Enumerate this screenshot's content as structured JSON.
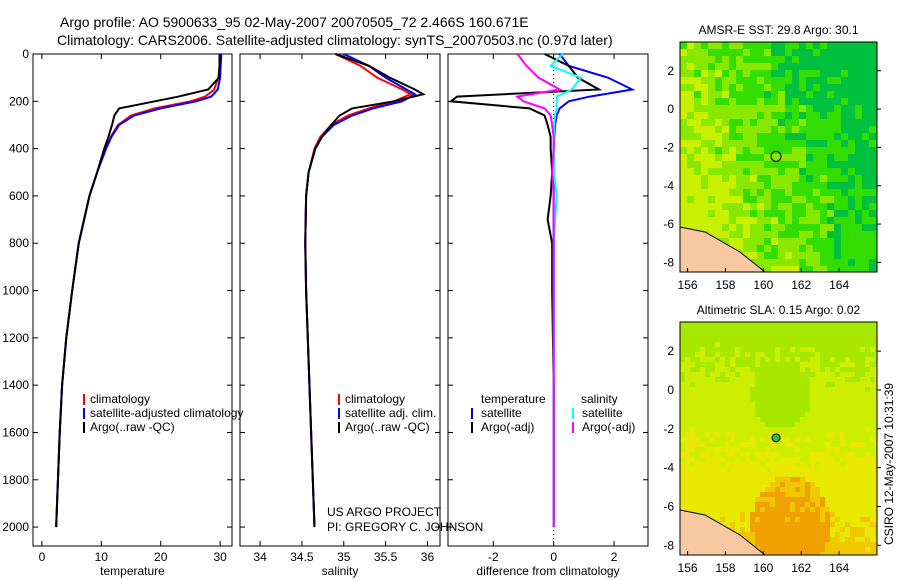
{
  "title_line1": "Argo profile: AO 5900633_95 02-May-2007 20070505_72 2.466S 160.671E",
  "title_line2": "Climatology: CARS2006. Satellite-adjusted climatology: synTS_20070503.nc (0.97d later)",
  "credit": "CSIRO 12-May-2007 10:31:39",
  "project_line1": "US ARGO PROJECT",
  "project_line2": "PI: GREGORY C. JOHNSON",
  "colors": {
    "climatology": "#ff0000",
    "satellite": "#0000ff",
    "argo": "#000000",
    "sat_sal": "#00ffff",
    "argo_sal": "#ff00ff"
  },
  "chart_data": [
    {
      "type": "line",
      "name": "temperature-profile",
      "xlabel": "temperature",
      "ylabel": "",
      "xlim": [
        -1.5,
        32
      ],
      "ylim": [
        2080,
        0
      ],
      "xticks": [
        0,
        10,
        20,
        30
      ],
      "yticks": [
        0,
        200,
        400,
        600,
        800,
        1000,
        1200,
        1400,
        1600,
        1800,
        2000
      ],
      "legend": [
        "climatology",
        "satellite-adjusted climatology",
        "Argo(..raw -QC)"
      ],
      "depth": [
        0,
        50,
        100,
        150,
        180,
        200,
        230,
        260,
        300,
        350,
        400,
        500,
        600,
        800,
        1000,
        1200,
        1400,
        1600,
        1800,
        2000
      ],
      "series": [
        {
          "name": "climatology",
          "color": "#ff0000",
          "values": [
            30,
            29.9,
            29.7,
            29,
            27.5,
            25,
            19,
            15,
            12.8,
            11.6,
            10.7,
            9.3,
            8,
            6.2,
            5.1,
            4.1,
            3.4,
            3,
            2.7,
            2.4
          ]
        },
        {
          "name": "satellite-adjusted climatology",
          "color": "#0000ff",
          "values": [
            30.2,
            30.1,
            30,
            29.6,
            28.5,
            26,
            20,
            15.5,
            13,
            11.7,
            10.8,
            9.3,
            8,
            6.2,
            5.1,
            4.1,
            3.4,
            3,
            2.7,
            2.4
          ]
        },
        {
          "name": "Argo(..raw -QC)",
          "color": "#000000",
          "values": [
            29.9,
            29.9,
            29.8,
            28,
            23,
            19,
            13,
            12.2,
            11.8,
            11.2,
            10.5,
            9.3,
            8,
            6.2,
            5.1,
            4.1,
            3.4,
            3,
            2.7,
            2.4
          ]
        }
      ]
    },
    {
      "type": "line",
      "name": "salinity-profile",
      "xlabel": "salinity",
      "xlim": [
        33.76,
        36.15
      ],
      "ylim": [
        2080,
        0
      ],
      "xticks": [
        34,
        34.5,
        35,
        35.5,
        36
      ],
      "legend": [
        "climatology",
        "satellite adj. clim.",
        "Argo(..raw -QC)"
      ],
      "depth": [
        0,
        50,
        100,
        150,
        170,
        200,
        230,
        260,
        300,
        350,
        400,
        500,
        600,
        800,
        1000,
        1200,
        1400,
        1600,
        1800,
        2000
      ],
      "series": [
        {
          "name": "climatology",
          "color": "#ff0000",
          "values": [
            34.9,
            35.2,
            35.4,
            35.7,
            35.8,
            35.6,
            35.3,
            35.05,
            34.85,
            34.72,
            34.65,
            34.58,
            34.55,
            34.54,
            34.55,
            34.57,
            34.59,
            34.61,
            34.63,
            34.65
          ]
        },
        {
          "name": "satellite adj. clim.",
          "color": "#0000ff",
          "values": [
            35.0,
            35.3,
            35.5,
            35.75,
            35.85,
            35.7,
            35.35,
            35.1,
            34.88,
            34.74,
            34.66,
            34.58,
            34.55,
            34.54,
            34.55,
            34.57,
            34.59,
            34.61,
            34.63,
            34.65
          ]
        },
        {
          "name": "Argo(..raw -QC)",
          "color": "#000000",
          "values": [
            34.9,
            35.3,
            35.55,
            35.85,
            35.95,
            35.6,
            35.1,
            34.95,
            34.85,
            34.74,
            34.66,
            34.58,
            34.55,
            34.54,
            34.55,
            34.57,
            34.59,
            34.61,
            34.63,
            34.65
          ]
        }
      ]
    },
    {
      "type": "line",
      "name": "difference-profile",
      "xlabel": "difference from climatology",
      "xlim": [
        -3.5,
        3.125
      ],
      "ylim": [
        2080,
        0
      ],
      "xticks": [
        -2,
        0,
        2
      ],
      "legend_titles": [
        "temperature",
        "salinity"
      ],
      "legend": [
        "satellite",
        "Argo(-adj)",
        "satellite",
        "Argo(-adj)"
      ],
      "depth": [
        0,
        50,
        100,
        150,
        180,
        200,
        230,
        260,
        300,
        350,
        400,
        500,
        600,
        700,
        800,
        1000,
        1400,
        2000
      ],
      "series": [
        {
          "name": "temperature satellite",
          "color": "#0000ff",
          "values": [
            0.2,
            0.5,
            1.8,
            2.6,
            1.2,
            0.5,
            0.2,
            0.1,
            0.05,
            0.02,
            0,
            0,
            0,
            0,
            0,
            0,
            0,
            0
          ]
        },
        {
          "name": "temperature Argo(-adj)",
          "color": "#000000",
          "values": [
            -0.3,
            0.5,
            0.8,
            1.5,
            -3.2,
            -3.4,
            -0.8,
            -0.3,
            -0.2,
            -0.1,
            -0.1,
            -0.05,
            -0.1,
            -0.2,
            -0.05,
            -0.05,
            0,
            0
          ]
        },
        {
          "name": "salinity satellite",
          "color": "#00ffff",
          "values": [
            0.3,
            -0.1,
            0.9,
            0.6,
            0.1,
            0.1,
            0.1,
            0.05,
            0.02,
            0.01,
            0,
            0,
            0.1,
            0.05,
            0,
            0,
            0,
            0
          ]
        },
        {
          "name": "salinity Argo(-adj)",
          "color": "#ff00ff",
          "values": [
            -1.2,
            -0.9,
            -0.5,
            0.2,
            -1.2,
            -1.0,
            -0.3,
            -0.1,
            -0.05,
            0,
            0,
            -0.05,
            0,
            0,
            0,
            0,
            0,
            0
          ]
        }
      ]
    },
    {
      "type": "heatmap",
      "name": "sst-map",
      "title": "AMSR-E SST: 29.8 Argo: 30.1",
      "xlim": [
        155.6,
        166
      ],
      "ylim": [
        -8.5,
        3.5
      ],
      "xticks": [
        156,
        158,
        160,
        162,
        164
      ],
      "yticks": [
        2,
        0,
        -2,
        -4,
        -6,
        -8
      ],
      "float_position": [
        160.671,
        -2.466
      ]
    },
    {
      "type": "heatmap",
      "name": "sla-map",
      "title": "Altimetric SLA: 0.15 Argo: 0.02",
      "xlim": [
        155.6,
        166
      ],
      "ylim": [
        -8.5,
        3.5
      ],
      "xticks": [
        156,
        158,
        160,
        162,
        164
      ],
      "yticks": [
        2,
        0,
        -2,
        -4,
        -6,
        -8
      ],
      "float_position": [
        160.671,
        -2.466
      ]
    }
  ]
}
